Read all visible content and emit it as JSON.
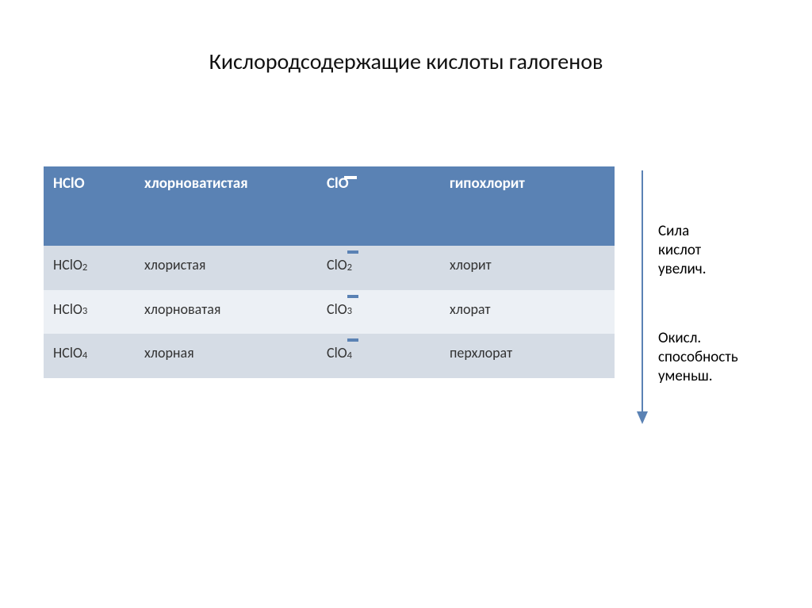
{
  "title": "Кислородсодержащие кислоты галогенов",
  "table": {
    "header": {
      "c0": "HClO",
      "c1": "хлорноватистая",
      "c2_base": "ClO",
      "c3": "гипохлорит"
    },
    "rows": [
      {
        "c0_base": "HClO",
        "c0_sub": "2",
        "c1": "хлористая",
        "c2_base": "ClO",
        "c2_sub": "2",
        "c3": "хлорит"
      },
      {
        "c0_base": "HClO",
        "c0_sub": "3",
        "c1": "хлорноватая",
        "c2_base": "ClO",
        "c2_sub": "3",
        "c3": "хлорат"
      },
      {
        "c0_base": "HClO",
        "c0_sub": "4",
        "c1": "хлорная",
        "c2_base": "ClO",
        "c2_sub": "4",
        "c3": "перхлорат"
      }
    ]
  },
  "side": {
    "label1_l1": "Сила",
    "label1_l2": "кислот",
    "label1_l3": "увелич.",
    "label2_l1": "Окисл.",
    "label2_l2": "способность",
    "label2_l3": "уменьш."
  },
  "colors": {
    "header_bg": "#5a82b4",
    "band_a": "#d5dce5",
    "band_b": "#ecf0f5",
    "arrow": "#5a82b4"
  }
}
